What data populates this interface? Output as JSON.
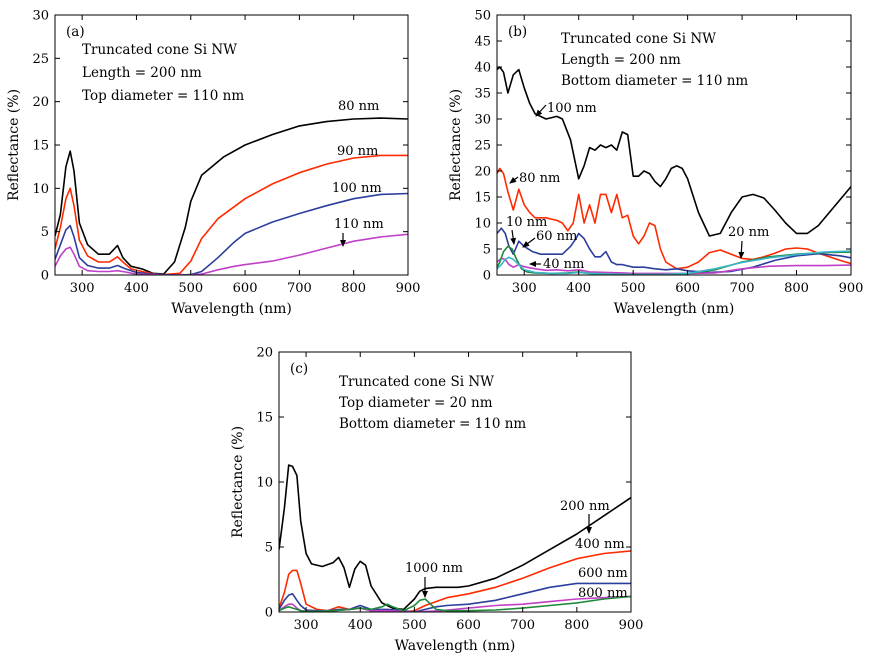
{
  "chart_data": [
    {
      "id": "a",
      "type": "line",
      "panel_label": "(a)",
      "xlabel": "Wavelength (nm)",
      "ylabel": "Reflectance (%)",
      "xlim": [
        250,
        900
      ],
      "ylim": [
        0,
        30
      ],
      "xticks": [
        300,
        400,
        500,
        600,
        700,
        800,
        900
      ],
      "yticks": [
        0,
        5,
        10,
        15,
        20,
        25,
        30
      ],
      "notes": [
        "Truncated cone Si NW",
        "Length = 200 nm",
        "Top diameter = 110 nm"
      ],
      "series": [
        {
          "name": "80 nm",
          "color": "#000000",
          "x": [
            250,
            260,
            270,
            278,
            285,
            295,
            310,
            330,
            350,
            365,
            375,
            390,
            410,
            430,
            450,
            470,
            490,
            500,
            520,
            560,
            600,
            650,
            700,
            750,
            800,
            850,
            900
          ],
          "y": [
            4.5,
            7,
            12.5,
            14.3,
            12,
            6,
            3.5,
            2.4,
            2.4,
            3.4,
            2.0,
            1.0,
            0.7,
            0.2,
            0.1,
            1.5,
            5.5,
            8.5,
            11.5,
            13.6,
            15,
            16.2,
            17.2,
            17.7,
            18,
            18.1,
            18
          ]
        },
        {
          "name": "90 nm",
          "color": "#ff2a00",
          "x": [
            250,
            260,
            270,
            278,
            285,
            295,
            310,
            330,
            350,
            365,
            375,
            390,
            410,
            430,
            450,
            480,
            500,
            520,
            550,
            600,
            650,
            700,
            750,
            800,
            850,
            900
          ],
          "y": [
            3,
            5.5,
            8.8,
            10,
            8,
            4,
            2.2,
            1.5,
            1.5,
            2.1,
            1.5,
            0.7,
            0.4,
            0.15,
            0.05,
            0.2,
            1.6,
            4.2,
            6.5,
            8.8,
            10.5,
            11.8,
            12.8,
            13.5,
            13.8,
            13.8
          ]
        },
        {
          "name": "100 nm",
          "color": "#2c3e9c",
          "x": [
            250,
            260,
            270,
            278,
            285,
            295,
            310,
            330,
            350,
            365,
            380,
            400,
            420,
            450,
            480,
            500,
            520,
            550,
            580,
            600,
            650,
            700,
            750,
            800,
            850,
            900
          ],
          "y": [
            1.8,
            3.5,
            5.2,
            5.7,
            4.4,
            2,
            1.1,
            0.8,
            0.8,
            1.1,
            0.7,
            0.3,
            0.15,
            0.05,
            0.0,
            0.05,
            0.4,
            2.0,
            3.8,
            4.8,
            6.1,
            7.1,
            8.0,
            8.8,
            9.3,
            9.4
          ]
        },
        {
          "name": "110 nm",
          "color": "#c040c8",
          "x": [
            250,
            260,
            270,
            278,
            285,
            295,
            310,
            330,
            350,
            365,
            380,
            400,
            420,
            450,
            480,
            500,
            520,
            550,
            580,
            600,
            650,
            700,
            750,
            800,
            850,
            900
          ],
          "y": [
            1,
            2.2,
            3.0,
            3.2,
            2.4,
            1.0,
            0.5,
            0.4,
            0.4,
            0.5,
            0.35,
            0.1,
            0.05,
            0.0,
            0.0,
            0.0,
            0.1,
            0.6,
            1.0,
            1.2,
            1.6,
            2.3,
            3.1,
            3.9,
            4.4,
            4.7
          ]
        }
      ],
      "annotations": [
        {
          "text": "80 nm"
        },
        {
          "text": "90 nm"
        },
        {
          "text": "100 nm"
        },
        {
          "text": "110 nm"
        }
      ]
    },
    {
      "id": "b",
      "type": "line",
      "panel_label": "(b)",
      "xlabel": "Wavelength (nm)",
      "ylabel": "Reflectance (%)",
      "xlim": [
        250,
        900
      ],
      "ylim": [
        0,
        50
      ],
      "xticks": [
        300,
        400,
        500,
        600,
        700,
        800,
        900
      ],
      "yticks": [
        0,
        5,
        10,
        15,
        20,
        25,
        30,
        35,
        40,
        45,
        50
      ],
      "notes": [
        "Truncated cone Si NW",
        "Length = 200 nm",
        "Bottom diameter = 110 nm"
      ],
      "series": [
        {
          "name": "100 nm",
          "color": "#000000",
          "x": [
            250,
            255,
            262,
            270,
            280,
            290,
            300,
            310,
            320,
            340,
            360,
            370,
            385,
            400,
            410,
            420,
            430,
            440,
            450,
            460,
            470,
            480,
            490,
            500,
            510,
            520,
            530,
            540,
            550,
            560,
            570,
            580,
            590,
            600,
            620,
            640,
            660,
            680,
            700,
            720,
            740,
            760,
            780,
            800,
            820,
            840,
            860,
            880,
            900
          ],
          "y": [
            39.5,
            40,
            39,
            35,
            38.5,
            39.5,
            36,
            33,
            31,
            30,
            30.5,
            30,
            26,
            18.5,
            21,
            24.5,
            24,
            25,
            24.5,
            25,
            24,
            27.5,
            27,
            19,
            19,
            20,
            19.5,
            18,
            17,
            18.5,
            20.5,
            21,
            20.5,
            18.5,
            12,
            7.5,
            8,
            12,
            15,
            15.5,
            14.8,
            12.5,
            10,
            8,
            8,
            9.5,
            12,
            14.5,
            17
          ]
        },
        {
          "name": "80 nm",
          "color": "#ff2a00",
          "x": [
            250,
            255,
            262,
            270,
            280,
            290,
            300,
            310,
            320,
            340,
            360,
            370,
            380,
            390,
            400,
            410,
            420,
            430,
            440,
            450,
            460,
            470,
            480,
            490,
            500,
            510,
            520,
            530,
            540,
            550,
            560,
            580,
            600,
            620,
            640,
            660,
            680,
            700,
            720,
            740,
            760,
            780,
            800,
            820,
            840,
            860,
            880,
            900
          ],
          "y": [
            19.5,
            20.5,
            19.5,
            16,
            12.5,
            16.5,
            13.5,
            12,
            11,
            11,
            10.5,
            10,
            8.5,
            10,
            15.5,
            10,
            13.5,
            10,
            15.5,
            15.5,
            12,
            15.5,
            11,
            11.5,
            7.5,
            6,
            7.5,
            10,
            9.5,
            5,
            2.5,
            1.2,
            1.5,
            2.5,
            4.3,
            4.8,
            4,
            3.2,
            3,
            3.5,
            4.2,
            5,
            5.2,
            5,
            4.2,
            3.5,
            2.8,
            2.2
          ]
        },
        {
          "name": "60 nm",
          "color": "#2c3e9c",
          "x": [
            250,
            258,
            265,
            272,
            280,
            290,
            300,
            315,
            330,
            350,
            370,
            385,
            395,
            400,
            410,
            420,
            430,
            440,
            450,
            460,
            470,
            480,
            500,
            520,
            540,
            560,
            580,
            600,
            640,
            680,
            720,
            760,
            800,
            840,
            880,
            900
          ],
          "y": [
            8,
            9,
            8,
            5.5,
            4,
            6.5,
            5.5,
            4.5,
            4,
            4,
            4,
            5.5,
            7,
            8,
            7,
            5,
            3.5,
            3.5,
            4.5,
            2.5,
            2,
            2,
            1.5,
            1.5,
            1.2,
            1,
            1.2,
            0.8,
            0.5,
            0.7,
            1.5,
            2.8,
            3.7,
            4.1,
            3.7,
            3.3
          ]
        },
        {
          "name": "40 nm",
          "color": "#c040c8",
          "x": [
            250,
            258,
            265,
            272,
            280,
            290,
            300,
            320,
            340,
            360,
            380,
            400,
            420,
            450,
            480,
            500,
            550,
            600,
            650,
            700,
            750,
            800,
            850,
            900
          ],
          "y": [
            2.5,
            3.2,
            3,
            2,
            1.5,
            2,
            1.6,
            1.2,
            0.9,
            1,
            0.8,
            1.0,
            0.6,
            0.5,
            0.4,
            0.3,
            0.3,
            0.3,
            0.4,
            1.2,
            1.7,
            1.8,
            1.8,
            1.9
          ]
        },
        {
          "name": "20 nm",
          "color": "#1f8a3a",
          "x": [
            250,
            255,
            262,
            270,
            278,
            285,
            295,
            305,
            320,
            350,
            380,
            400,
            420,
            450,
            500,
            550,
            600,
            650,
            700,
            750,
            800,
            850,
            900
          ],
          "y": [
            1.5,
            2.4,
            4.5,
            5.5,
            5,
            3.2,
            1.2,
            0.6,
            0.4,
            0.3,
            0.4,
            0.6,
            0.3,
            0.2,
            0.1,
            0.1,
            0.3,
            1.0,
            2.5,
            3.5,
            4,
            4.3,
            4.4
          ]
        },
        {
          "name": "10 nm",
          "color": "#3ab5c8",
          "x": [
            250,
            258,
            265,
            272,
            280,
            290,
            300,
            320,
            350,
            380,
            400,
            420,
            450,
            500,
            550,
            600,
            650,
            700,
            750,
            800,
            850,
            900
          ],
          "y": [
            1.2,
            2,
            3,
            3.4,
            3,
            2.0,
            1.0,
            0.5,
            0.3,
            0.3,
            0.5,
            0.3,
            0.2,
            0.1,
            0.1,
            0.3,
            1.2,
            2.4,
            3.3,
            3.9,
            4.4,
            4.6
          ]
        }
      ],
      "annotations": [
        {
          "text": "100 nm"
        },
        {
          "text": "80 nm"
        },
        {
          "text": "10 nm"
        },
        {
          "text": "60 nm"
        },
        {
          "text": "40 nm"
        },
        {
          "text": "20 nm"
        }
      ]
    },
    {
      "id": "c",
      "type": "line",
      "panel_label": "(c)",
      "xlabel": "Wavelength  (nm)",
      "ylabel": "Reflectance (%)",
      "xlim": [
        250,
        900
      ],
      "ylim": [
        0,
        20
      ],
      "xticks": [
        300,
        400,
        500,
        600,
        700,
        800,
        900
      ],
      "yticks": [
        0,
        5,
        10,
        15,
        20
      ],
      "notes": [
        "Truncated cone Si NW",
        "Top diameter = 20 nm",
        "Bottom diameter = 110 nm"
      ],
      "series": [
        {
          "name": "200 nm",
          "color": "#000000",
          "x": [
            250,
            260,
            268,
            275,
            283,
            290,
            300,
            310,
            330,
            350,
            360,
            370,
            380,
            390,
            400,
            410,
            420,
            440,
            460,
            480,
            500,
            510,
            520,
            540,
            560,
            580,
            600,
            650,
            700,
            750,
            800,
            850,
            900
          ],
          "y": [
            4.8,
            8,
            11.3,
            11.2,
            10.5,
            7,
            4.5,
            3.7,
            3.5,
            3.8,
            4.2,
            3.4,
            1.9,
            3.3,
            3.9,
            3.6,
            2.0,
            0.7,
            0.3,
            0.2,
            1.0,
            1.6,
            1.8,
            1.9,
            1.9,
            1.9,
            2.0,
            2.6,
            3.6,
            4.8,
            6.0,
            7.4,
            8.8
          ]
        },
        {
          "name": "400 nm",
          "color": "#ff2a00",
          "x": [
            250,
            260,
            268,
            275,
            283,
            290,
            300,
            320,
            340,
            360,
            380,
            400,
            420,
            450,
            480,
            500,
            520,
            540,
            560,
            600,
            650,
            700,
            750,
            800,
            850,
            900
          ],
          "y": [
            0.3,
            1.5,
            2.9,
            3.2,
            3.2,
            2.2,
            0.6,
            0.2,
            0.1,
            0.4,
            0.2,
            0.3,
            0.1,
            0.1,
            0.0,
            0.1,
            0.5,
            0.8,
            1.1,
            1.4,
            1.9,
            2.6,
            3.4,
            4.1,
            4.5,
            4.7
          ]
        },
        {
          "name": "600 nm",
          "color": "#2c3e9c",
          "x": [
            250,
            260,
            268,
            275,
            283,
            290,
            300,
            320,
            340,
            360,
            380,
            400,
            420,
            450,
            480,
            500,
            520,
            540,
            560,
            600,
            650,
            700,
            750,
            800,
            850,
            900
          ],
          "y": [
            0.2,
            0.9,
            1.3,
            1.4,
            0.9,
            0.5,
            0.15,
            0.1,
            0.1,
            0.2,
            0.2,
            0.5,
            0.2,
            0.2,
            0.1,
            0.0,
            0.2,
            0.4,
            0.5,
            0.6,
            0.9,
            1.4,
            1.9,
            2.2,
            2.2,
            2.2
          ]
        },
        {
          "name": "800 nm",
          "color": "#c040c8",
          "x": [
            250,
            260,
            268,
            275,
            283,
            290,
            300,
            320,
            350,
            380,
            400,
            420,
            450,
            480,
            500,
            550,
            600,
            650,
            700,
            750,
            800,
            850,
            900
          ],
          "y": [
            0.1,
            0.4,
            0.6,
            0.6,
            0.3,
            0.1,
            0.05,
            0.05,
            0.1,
            0.2,
            0.3,
            0.1,
            0.1,
            0.05,
            0.0,
            0.1,
            0.3,
            0.5,
            0.6,
            0.8,
            1.0,
            1.1,
            1.2
          ]
        },
        {
          "name": "1000 nm",
          "color": "#1f8a3a",
          "x": [
            250,
            260,
            268,
            275,
            283,
            290,
            300,
            320,
            350,
            380,
            400,
            420,
            440,
            450,
            460,
            480,
            500,
            510,
            520,
            530,
            540,
            560,
            600,
            650,
            700,
            750,
            800,
            850,
            900
          ],
          "y": [
            0.1,
            0.3,
            0.4,
            0.3,
            0.2,
            0.1,
            0.05,
            0.05,
            0.1,
            0.2,
            0.3,
            0.2,
            0.4,
            0.6,
            0.4,
            0.1,
            0.5,
            0.9,
            1.0,
            0.6,
            0.2,
            0.1,
            0.1,
            0.15,
            0.3,
            0.5,
            0.7,
            1.0,
            1.2
          ]
        }
      ],
      "annotations": [
        {
          "text": "200 nm"
        },
        {
          "text": "400 nm"
        },
        {
          "text": "600 nm"
        },
        {
          "text": "800 nm"
        },
        {
          "text": "1000 nm"
        }
      ]
    }
  ]
}
